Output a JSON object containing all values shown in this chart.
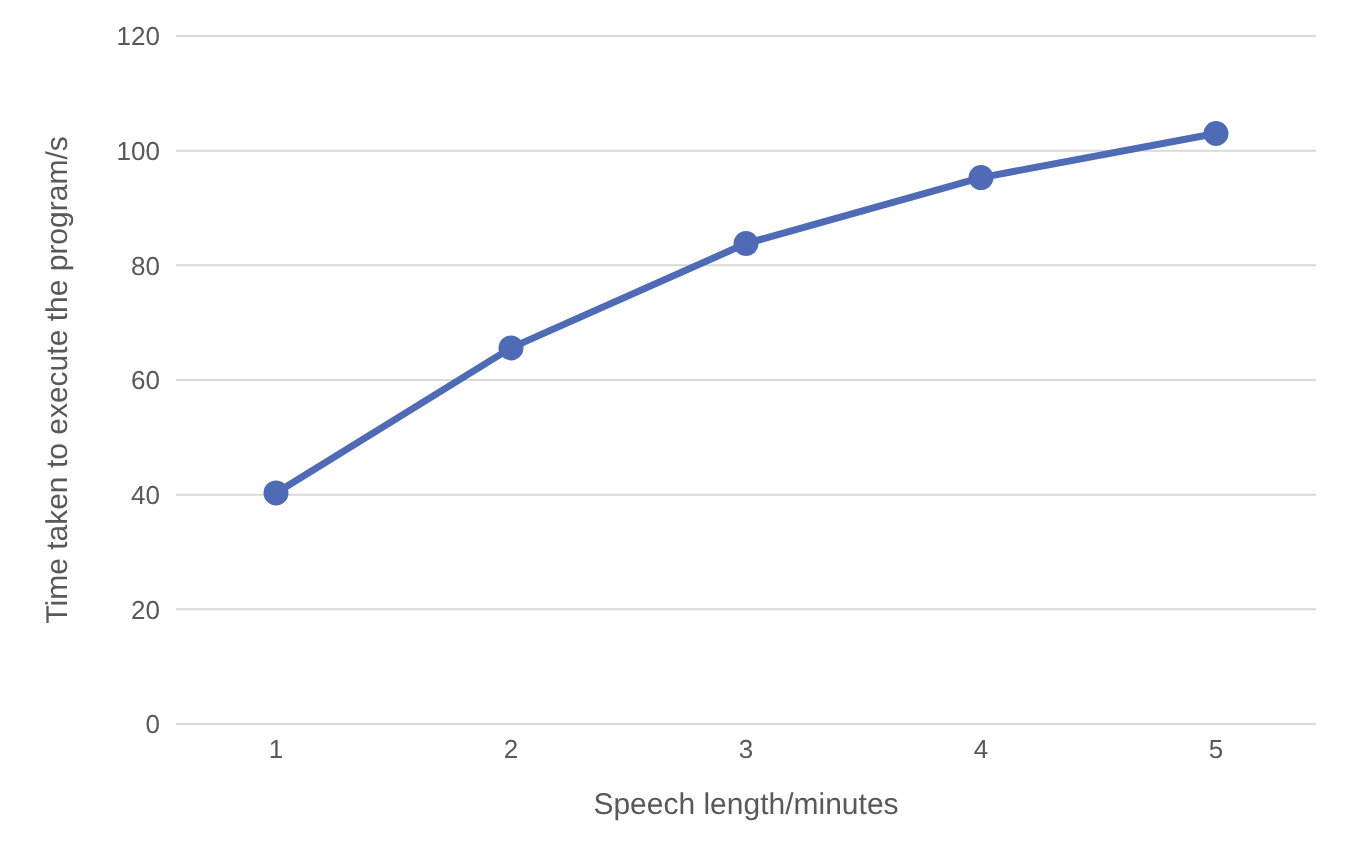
{
  "chart_data": {
    "type": "line",
    "xlabel": "Speech length/minutes",
    "ylabel": "Time taken to execute the program/s",
    "categories": [
      "1",
      "2",
      "3",
      "4",
      "5"
    ],
    "series": [
      {
        "color": "#4f6bb5",
        "values": [
          40.3,
          65.6,
          83.8,
          95.3,
          103
        ]
      }
    ],
    "ylim": [
      0,
      120
    ],
    "yticks": [
      0,
      20,
      40,
      60,
      80,
      100,
      120
    ],
    "grid": "y",
    "marker": "circle",
    "line_style": "solid"
  }
}
